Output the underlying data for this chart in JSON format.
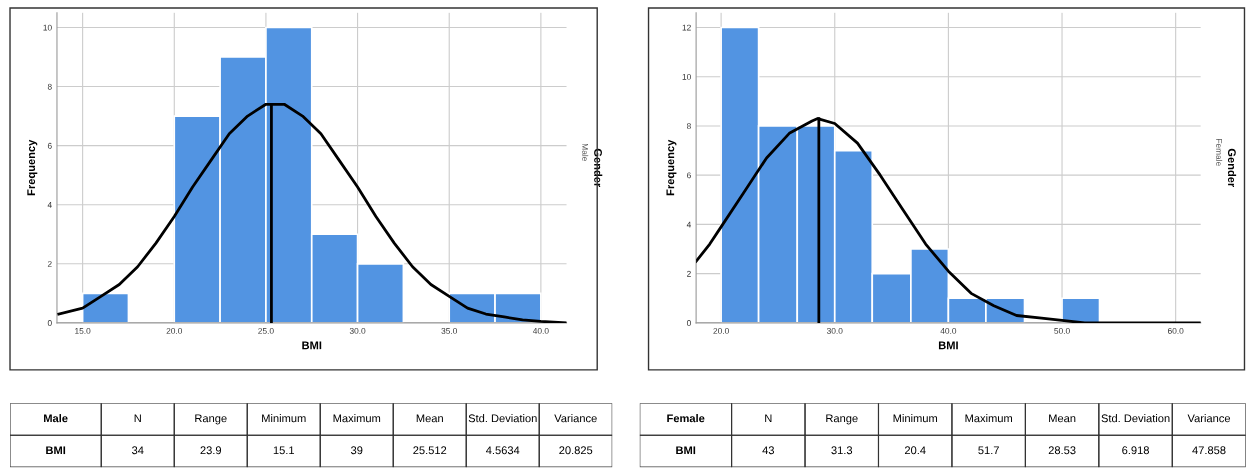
{
  "chart_data": [
    {
      "type": "histogram",
      "xlabel": "BMI",
      "ylabel": "Frequency",
      "color": "#5294e2",
      "grid": true,
      "bins": [
        15,
        17.5,
        20,
        22.5,
        25,
        27.5,
        30,
        32.5,
        35,
        37.5,
        40
      ],
      "values": [
        1,
        0,
        7,
        9,
        10,
        3,
        2,
        0,
        1,
        1
      ],
      "xlim": [
        13.6,
        41.4
      ],
      "ylim": [
        0,
        10.5
      ],
      "xticks": [
        {
          "value": 15,
          "label": "15.0"
        },
        {
          "value": 20,
          "label": "20.0"
        },
        {
          "value": 25,
          "label": "25.0"
        },
        {
          "value": 30,
          "label": "30.0"
        },
        {
          "value": 35,
          "label": "35.0"
        },
        {
          "value": 40,
          "label": "40.0"
        }
      ],
      "yticks": [
        0,
        2,
        4,
        6,
        8,
        10
      ],
      "annotations": [
        "Gender",
        "Male"
      ],
      "series": [
        {
          "type": "line",
          "color": "#000000",
          "x": [
            13.7,
            15,
            16,
            17,
            18,
            19,
            20,
            21,
            22,
            23,
            24,
            25,
            25.5,
            26,
            27,
            28,
            29,
            30,
            31,
            32,
            33,
            34,
            35,
            36,
            37,
            38,
            39,
            40,
            41.4
          ],
          "values": [
            0.3,
            0.5,
            0.9,
            1.3,
            1.9,
            2.7,
            3.6,
            4.6,
            5.5,
            6.4,
            7.0,
            7.4,
            7.4,
            7.4,
            7.0,
            6.4,
            5.5,
            4.6,
            3.6,
            2.7,
            1.9,
            1.3,
            0.9,
            0.5,
            0.3,
            0.2,
            0.1,
            0.05,
            0.0
          ]
        },
        {
          "type": "line",
          "color": "#000000",
          "x": [
            25.3,
            25.3
          ],
          "values": [
            0,
            7.4
          ]
        }
      ]
    },
    {
      "type": "histogram",
      "xlabel": "BMI",
      "ylabel": "Frequency",
      "color": "#5294e2",
      "grid": true,
      "bins": [
        20,
        23.3,
        26.7,
        30,
        33.3,
        36.7,
        40,
        43.3,
        46.7,
        50,
        53.3
      ],
      "values": [
        12,
        8,
        8,
        7,
        2,
        3,
        1,
        1,
        0,
        1
      ],
      "xlim": [
        17.8,
        62.2
      ],
      "ylim": [
        0,
        12.6
      ],
      "xticks": [
        {
          "value": 20,
          "label": "20.0"
        },
        {
          "value": 30,
          "label": "30.0"
        },
        {
          "value": 40,
          "label": "40.0"
        },
        {
          "value": 50,
          "label": "50.0"
        },
        {
          "value": 60,
          "label": "60.0"
        }
      ],
      "yticks": [
        0,
        2,
        4,
        6,
        8,
        10,
        12
      ],
      "annotations": [
        "Gender",
        "Female"
      ],
      "series": [
        {
          "type": "line",
          "color": "#000000",
          "x": [
            17.8,
            19,
            20,
            22,
            24,
            26,
            28,
            28.5,
            30,
            32,
            34,
            36,
            38,
            40,
            42,
            44,
            46,
            48,
            50,
            52,
            55,
            62.2
          ],
          "values": [
            2.5,
            3.2,
            3.9,
            5.3,
            6.7,
            7.7,
            8.2,
            8.3,
            8.1,
            7.3,
            6.0,
            4.6,
            3.2,
            2.1,
            1.2,
            0.7,
            0.3,
            0.2,
            0.1,
            0.0,
            0.0,
            0.0
          ]
        },
        {
          "type": "line",
          "color": "#000000",
          "x": [
            28.6,
            28.6
          ],
          "values": [
            0,
            8.3
          ]
        }
      ]
    },
    {
      "type": "other",
      "categories": [
        "Male",
        "N",
        "Range",
        "Minimum",
        "Maximum",
        "Mean",
        "Std. Deviation",
        "Variance"
      ],
      "value_labels": [
        "BMI",
        "34",
        "23.9",
        "15.1",
        "39",
        "25.512",
        "4.5634",
        "20.825"
      ]
    },
    {
      "type": "other",
      "categories": [
        "Female",
        "N",
        "Range",
        "Minimum",
        "Maximum",
        "Mean",
        "Std. Deviation",
        "Variance"
      ],
      "value_labels": [
        "BMI",
        "43",
        "31.3",
        "20.4",
        "51.7",
        "28.53",
        "6.918",
        "47.858"
      ]
    }
  ]
}
